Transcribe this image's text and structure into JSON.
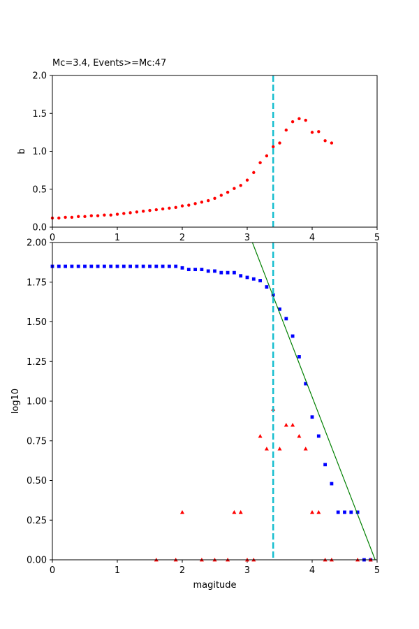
{
  "chart_data": [
    {
      "type": "scatter",
      "title": "Mc=3.4, Events>=Mc:47",
      "xlabel": "",
      "ylabel": "b",
      "xlim": [
        0,
        5
      ],
      "ylim": [
        0,
        2
      ],
      "xticks": [
        "0",
        "1",
        "2",
        "3",
        "4",
        "5"
      ],
      "yticks": [
        "0.0",
        "0.5",
        "1.0",
        "1.5",
        "2.0"
      ],
      "grid": false,
      "mc_line": {
        "x": 3.4,
        "color": "#17becf",
        "style": "dashed"
      },
      "series": [
        {
          "marker": "circle",
          "color": "#ff0000",
          "x": [
            0.0,
            0.1,
            0.2,
            0.3,
            0.4,
            0.5,
            0.6,
            0.7,
            0.8,
            0.9,
            1.0,
            1.1,
            1.2,
            1.3,
            1.4,
            1.5,
            1.6,
            1.7,
            1.8,
            1.9,
            2.0,
            2.1,
            2.2,
            2.3,
            2.4,
            2.5,
            2.6,
            2.7,
            2.8,
            2.9,
            3.0,
            3.1,
            3.2,
            3.3,
            3.4,
            3.5,
            3.6,
            3.7,
            3.8,
            3.9,
            4.0,
            4.1,
            4.2,
            4.3
          ],
          "y": [
            0.12,
            0.12,
            0.13,
            0.13,
            0.14,
            0.14,
            0.15,
            0.15,
            0.16,
            0.16,
            0.17,
            0.18,
            0.19,
            0.2,
            0.21,
            0.22,
            0.23,
            0.24,
            0.25,
            0.26,
            0.28,
            0.29,
            0.31,
            0.33,
            0.35,
            0.38,
            0.42,
            0.46,
            0.51,
            0.55,
            0.62,
            0.72,
            0.85,
            0.94,
            1.06,
            1.11,
            1.28,
            1.39,
            1.43,
            1.41,
            1.25,
            1.26,
            1.14,
            1.11
          ]
        }
      ]
    },
    {
      "type": "scatter",
      "title": "",
      "xlabel": "magitude",
      "ylabel": "log10",
      "xlim": [
        0,
        5
      ],
      "ylim": [
        0,
        2
      ],
      "xticks": [
        "0",
        "1",
        "2",
        "3",
        "4",
        "5"
      ],
      "yticks": [
        "0.00",
        "0.25",
        "0.50",
        "0.75",
        "1.00",
        "1.25",
        "1.50",
        "1.75",
        "2.00"
      ],
      "grid": false,
      "mc_line": {
        "x": 3.4,
        "color": "#17becf",
        "style": "dashed"
      },
      "fit_line": {
        "x": [
          3.08,
          4.97
        ],
        "y": [
          2.0,
          0.0
        ],
        "color": "#008000"
      },
      "series": [
        {
          "marker": "square",
          "color": "#0000ff",
          "x": [
            0.0,
            0.1,
            0.2,
            0.3,
            0.4,
            0.5,
            0.6,
            0.7,
            0.8,
            0.9,
            1.0,
            1.1,
            1.2,
            1.3,
            1.4,
            1.5,
            1.6,
            1.7,
            1.8,
            1.9,
            2.0,
            2.1,
            2.2,
            2.3,
            2.4,
            2.5,
            2.6,
            2.7,
            2.8,
            2.9,
            3.0,
            3.1,
            3.2,
            3.3,
            3.4,
            3.5,
            3.6,
            3.7,
            3.8,
            3.9,
            4.0,
            4.1,
            4.2,
            4.3,
            4.4,
            4.5,
            4.6,
            4.7,
            4.8,
            4.9
          ],
          "y": [
            1.85,
            1.85,
            1.85,
            1.85,
            1.85,
            1.85,
            1.85,
            1.85,
            1.85,
            1.85,
            1.85,
            1.85,
            1.85,
            1.85,
            1.85,
            1.85,
            1.85,
            1.85,
            1.85,
            1.85,
            1.84,
            1.83,
            1.83,
            1.83,
            1.82,
            1.82,
            1.81,
            1.81,
            1.81,
            1.79,
            1.78,
            1.77,
            1.76,
            1.72,
            1.67,
            1.58,
            1.52,
            1.41,
            1.28,
            1.11,
            0.9,
            0.78,
            0.6,
            0.48,
            0.3,
            0.3,
            0.3,
            0.3,
            0.0,
            0.0
          ]
        },
        {
          "marker": "triangle",
          "color": "#ff0000",
          "x": [
            1.6,
            1.9,
            2.0,
            2.3,
            2.5,
            2.7,
            2.8,
            2.9,
            3.0,
            3.1,
            3.2,
            3.3,
            3.4,
            3.5,
            3.6,
            3.7,
            3.8,
            3.9,
            4.0,
            4.1,
            4.2,
            4.3,
            4.7,
            4.9
          ],
          "y": [
            0.0,
            0.0,
            0.3,
            0.0,
            0.0,
            0.0,
            0.3,
            0.3,
            0.0,
            0.0,
            0.78,
            0.7,
            0.95,
            0.7,
            0.85,
            0.85,
            0.78,
            0.7,
            0.3,
            0.3,
            0.0,
            0.0,
            0.0,
            0.0
          ]
        }
      ]
    }
  ]
}
